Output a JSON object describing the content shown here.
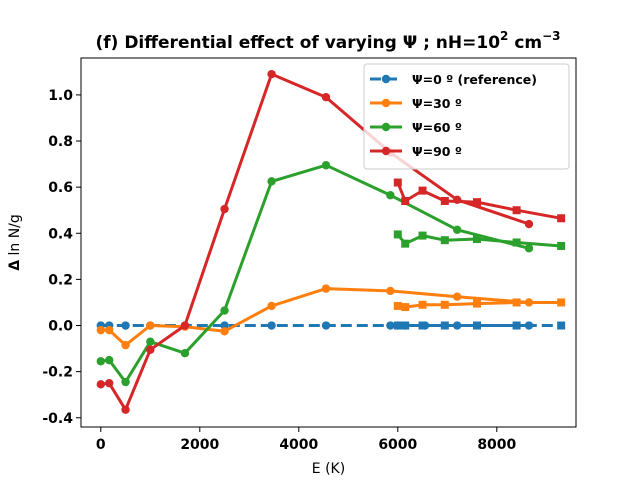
{
  "chart_data": {
    "type": "line",
    "title_main": "(f) Differential effect of varying Ψ ; nH=10",
    "title_sup": "2",
    "title_unit": " cm",
    "title_unit_sup": "−3",
    "xlabel": "E (K)",
    "ylabel_bold": "Δ",
    "ylabel_rest": " ln N/g",
    "xlim": [
      -400,
      9600
    ],
    "ylim": [
      -0.44,
      1.16
    ],
    "xticks": [
      0,
      2000,
      4000,
      6000,
      8000
    ],
    "xtick_labels": [
      "0",
      "2000",
      "4000",
      "6000",
      "8000"
    ],
    "yticks": [
      -0.4,
      -0.2,
      0.0,
      0.2,
      0.4,
      0.6,
      0.8,
      1.0
    ],
    "ytick_labels": [
      "-0.4",
      "-0.2",
      "0.0",
      "0.2",
      "0.4",
      "0.6",
      "0.8",
      "1.0"
    ],
    "legend_location": "top-right",
    "series": [
      {
        "name": "Ψ=0 º (reference)",
        "color": "#1f77b4",
        "dashed": true,
        "circles": {
          "x": [
            0,
            170,
            500,
            1000,
            1700,
            2500,
            3450,
            4550,
            5850,
            6000,
            6150,
            6550,
            7200,
            8650
          ],
          "y": [
            0,
            0,
            0,
            0,
            0,
            0,
            0,
            0,
            0,
            0,
            0,
            0,
            0,
            0
          ]
        },
        "squares": {
          "x": [
            6000,
            6150,
            6500,
            6950,
            7600,
            8400,
            9300
          ],
          "y": [
            0,
            0,
            0,
            0,
            0,
            0,
            0
          ]
        }
      },
      {
        "name": "Ψ=30 º",
        "color": "#ff7f0e",
        "dashed": false,
        "circles": {
          "x": [
            0,
            170,
            500,
            1000,
            1700,
            2500,
            3450,
            4550,
            5850,
            7200,
            8650
          ],
          "y": [
            -0.02,
            -0.02,
            -0.085,
            0.0,
            -0.005,
            -0.025,
            0.085,
            0.16,
            0.15,
            0.125,
            0.1
          ]
        },
        "squares": {
          "x": [
            6000,
            6150,
            6500,
            6950,
            7600,
            8400,
            9300
          ],
          "y": [
            0.085,
            0.08,
            0.09,
            0.09,
            0.095,
            0.1,
            0.1
          ]
        }
      },
      {
        "name": "Ψ=60 º",
        "color": "#2ca02c",
        "dashed": false,
        "circles": {
          "x": [
            0,
            170,
            500,
            1000,
            1700,
            2500,
            3450,
            4550,
            5850,
            7200,
            8650
          ],
          "y": [
            -0.155,
            -0.15,
            -0.245,
            -0.07,
            -0.12,
            0.065,
            0.625,
            0.695,
            0.565,
            0.415,
            0.335
          ]
        },
        "squares": {
          "x": [
            6000,
            6150,
            6500,
            6950,
            7600,
            8400,
            9300
          ],
          "y": [
            0.395,
            0.355,
            0.39,
            0.37,
            0.375,
            0.36,
            0.345
          ]
        }
      },
      {
        "name": "Ψ=90 º",
        "color": "#d62728",
        "dashed": false,
        "circles": {
          "x": [
            0,
            170,
            500,
            1000,
            1700,
            2500,
            3450,
            4550,
            5850,
            7200,
            8650
          ],
          "y": [
            -0.255,
            -0.25,
            -0.365,
            -0.105,
            0.0,
            0.505,
            1.09,
            0.99,
            0.75,
            0.545,
            0.44
          ]
        },
        "squares": {
          "x": [
            6000,
            6150,
            6500,
            6950,
            7600,
            8400,
            9300
          ],
          "y": [
            0.62,
            0.54,
            0.585,
            0.54,
            0.535,
            0.5,
            0.465
          ]
        }
      }
    ]
  }
}
